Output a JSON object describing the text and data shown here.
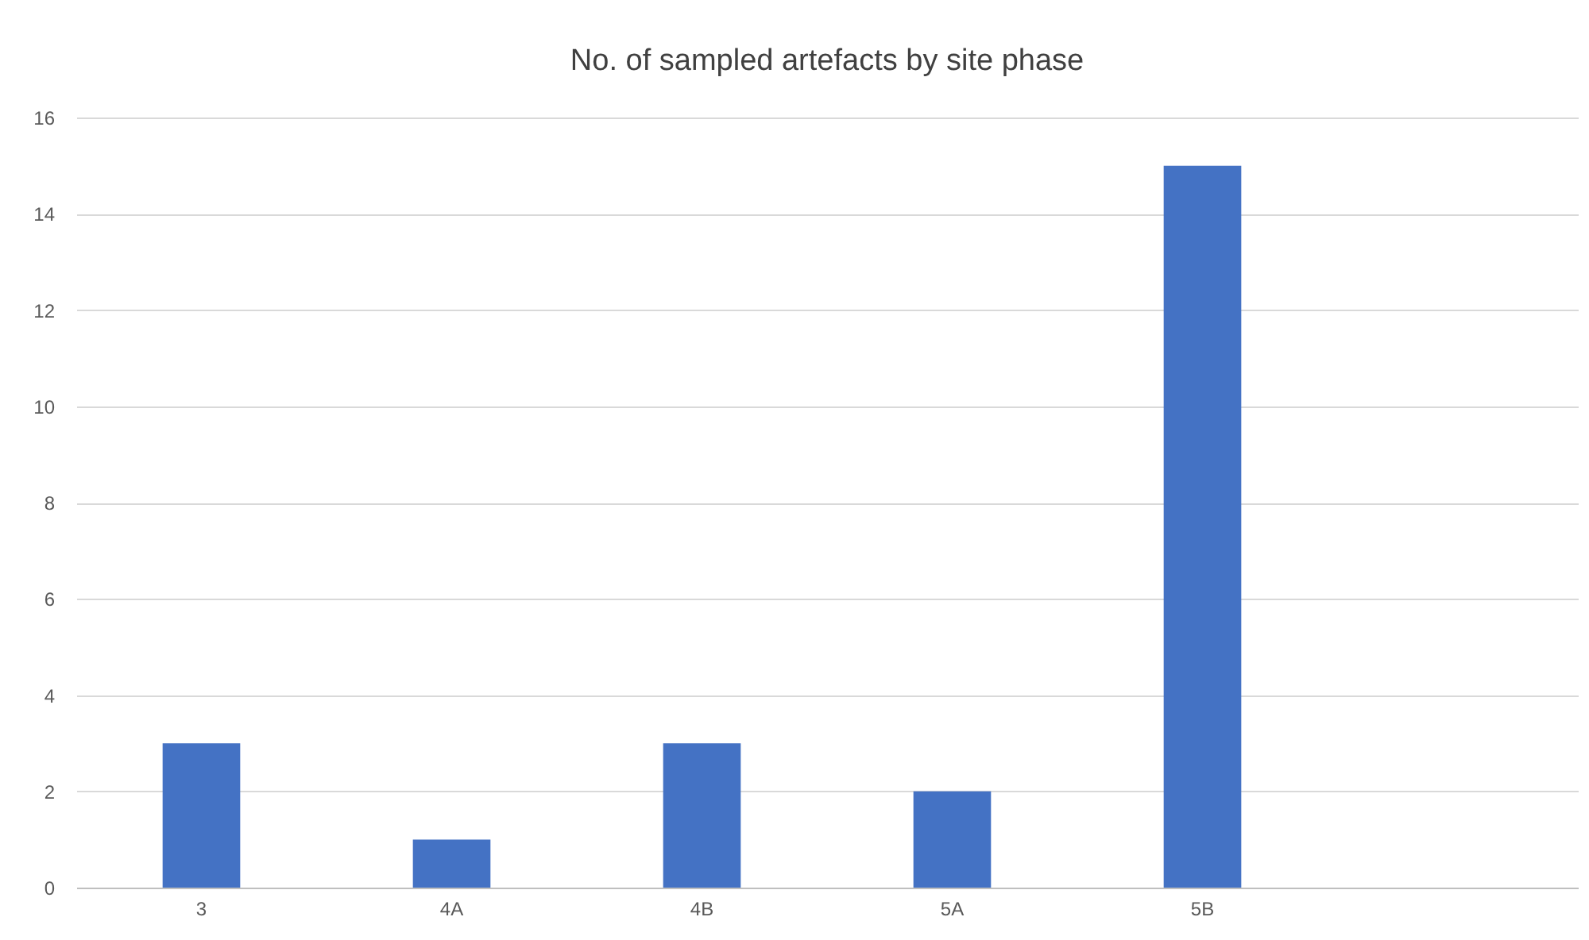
{
  "chart_data": {
    "type": "bar",
    "title": "No. of sampled artefacts by site phase",
    "categories": [
      "3",
      "4A",
      "4B",
      "5A",
      "5B",
      null
    ],
    "values": [
      3,
      1,
      3,
      2,
      15,
      null
    ],
    "color": "#4472c4",
    "ylim": [
      0,
      16
    ],
    "yticks": [
      0,
      2,
      4,
      6,
      8,
      10,
      12,
      14,
      16
    ],
    "grid": "y"
  }
}
